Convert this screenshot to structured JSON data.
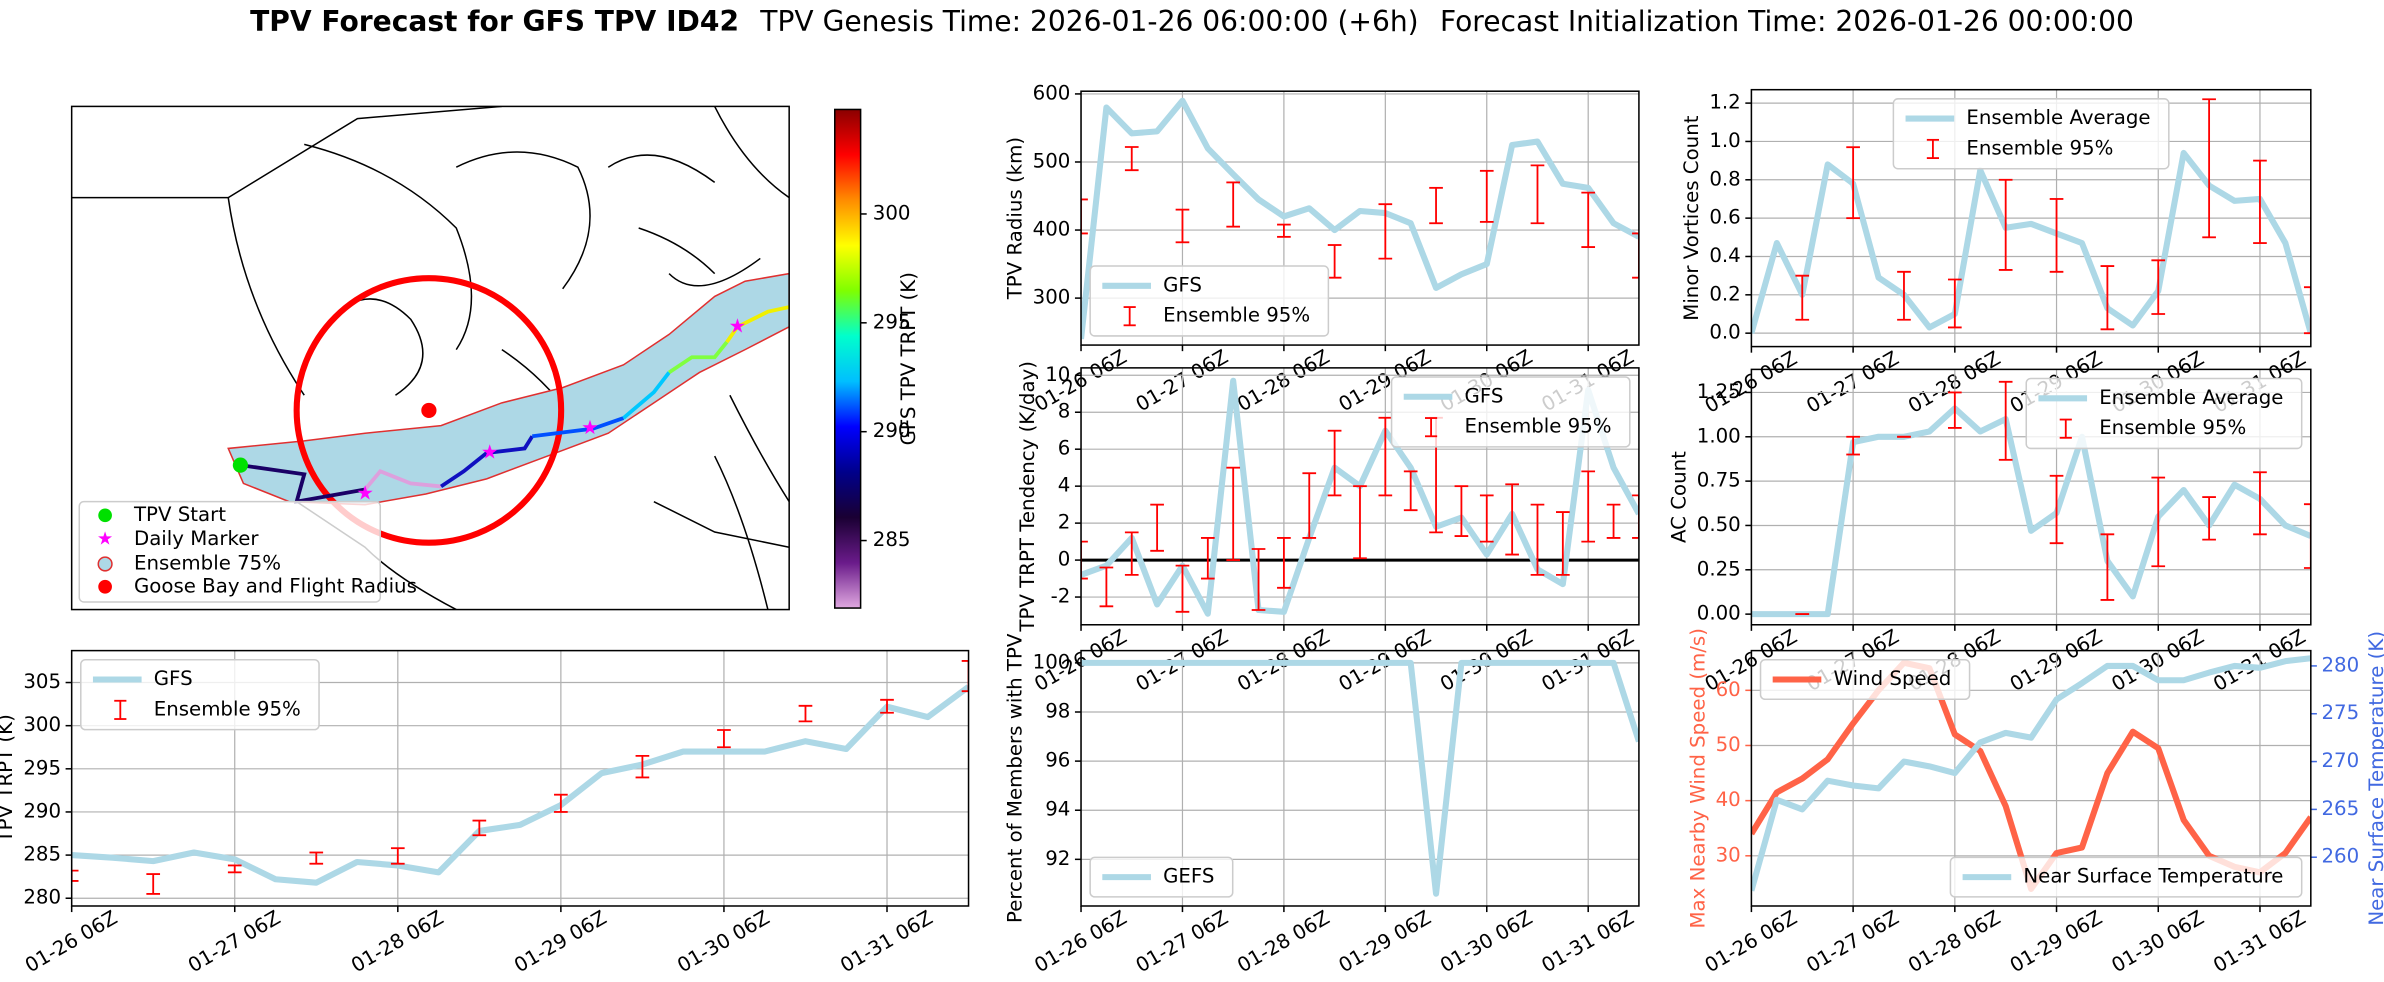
{
  "title": {
    "main": "TPV Forecast for GFS TPV ID42",
    "genesis": "TPV Genesis Time: 2026-01-26 06:00:00 (+6h)",
    "init": "Forecast Initialization Time: 2026-01-26 00:00:00"
  },
  "chart_data": [
    {
      "type": "map",
      "legend": "lower left",
      "legend_entries": [
        "TPV Start",
        "Daily Marker",
        "Ensemble 75%",
        "Goose Bay and Flight Radius"
      ],
      "colorbar": {
        "label": "GFS TPV TRPT (K)",
        "clim": [
          281.9,
          304.8
        ],
        "ticks": [
          285,
          290,
          295,
          300
        ],
        "colormap": [
          "#e0a8e0",
          "#6a1b8a",
          "#1a0033",
          "#00008b",
          "#0000ff",
          "#00bfff",
          "#00ffcc",
          "#7fff00",
          "#ffff00",
          "#ff8c00",
          "#ff0000",
          "#8b0000"
        ]
      }
    },
    {
      "type": "line",
      "ylabel": "TPV Radius (km)",
      "x": [
        "01-26 06Z",
        "01-26 12Z",
        "01-26 18Z",
        "01-27 00Z",
        "01-27 06Z",
        "01-27 12Z",
        "01-27 18Z",
        "01-28 00Z",
        "01-28 06Z",
        "01-28 12Z",
        "01-28 18Z",
        "01-29 00Z",
        "01-29 06Z",
        "01-29 12Z",
        "01-29 18Z",
        "01-30 00Z",
        "01-30 06Z",
        "01-30 12Z",
        "01-30 18Z",
        "01-31 00Z",
        "01-31 06Z",
        "01-31 12Z",
        "01-31 18Z"
      ],
      "xticks": [
        "01-26 06Z",
        "01-27 06Z",
        "01-28 06Z",
        "01-29 06Z",
        "01-30 06Z",
        "01-31 06Z"
      ],
      "ylim": [
        231,
        604
      ],
      "yticks": [
        300,
        400,
        500,
        600
      ],
      "grid": true,
      "legend": "lower left",
      "series": [
        {
          "name": "GFS",
          "type": "line",
          "color": "#add8e6",
          "values": [
            240,
            580,
            542,
            545,
            590,
            520,
            482,
            445,
            420,
            432,
            400,
            428,
            425,
            410,
            315,
            335,
            350,
            525,
            530,
            468,
            462,
            410,
            390
          ]
        },
        {
          "name": "Ensemble 95%",
          "type": "errorbar",
          "color": "#ff0000",
          "lower": [
            395,
            null,
            488,
            null,
            382,
            null,
            405,
            null,
            390,
            null,
            330,
            null,
            358,
            null,
            410,
            null,
            412,
            null,
            410,
            null,
            375,
            null,
            330
          ],
          "upper": [
            445,
            null,
            522,
            null,
            430,
            null,
            470,
            null,
            408,
            null,
            378,
            null,
            438,
            null,
            462,
            null,
            487,
            null,
            495,
            null,
            455,
            null,
            395
          ]
        }
      ]
    },
    {
      "type": "line",
      "ylabel": "Minor Vortices Count",
      "x": [
        "01-26 06Z",
        "01-26 12Z",
        "01-26 18Z",
        "01-27 00Z",
        "01-27 06Z",
        "01-27 12Z",
        "01-27 18Z",
        "01-28 00Z",
        "01-28 06Z",
        "01-28 12Z",
        "01-28 18Z",
        "01-29 00Z",
        "01-29 06Z",
        "01-29 12Z",
        "01-29 18Z",
        "01-30 00Z",
        "01-30 06Z",
        "01-30 12Z",
        "01-30 18Z",
        "01-31 00Z",
        "01-31 06Z",
        "01-31 12Z",
        "01-31 18Z"
      ],
      "xticks": [
        "01-26 06Z",
        "01-27 06Z",
        "01-28 06Z",
        "01-29 06Z",
        "01-30 06Z",
        "01-31 06Z"
      ],
      "ylim": [
        -0.07,
        1.27
      ],
      "yticks": [
        {
          "value": 0,
          "label": "0.0"
        },
        0.2,
        0.4,
        0.6,
        0.8,
        {
          "value": 1,
          "label": "1.0"
        },
        1.2
      ],
      "grid": true,
      "legend": "upper center",
      "series": [
        {
          "name": "Ensemble Average",
          "type": "line",
          "color": "#add8e6",
          "values": [
            0.0,
            0.47,
            0.2,
            0.88,
            0.78,
            0.29,
            0.2,
            0.03,
            0.1,
            0.85,
            0.55,
            0.57,
            0.52,
            0.47,
            0.13,
            0.04,
            0.22,
            0.94,
            0.77,
            0.69,
            0.7,
            0.47,
            0.0
          ]
        },
        {
          "name": "Ensemble 95%",
          "type": "errorbar",
          "color": "#ff0000",
          "lower": [
            null,
            null,
            0.07,
            null,
            0.6,
            null,
            0.07,
            null,
            0.03,
            null,
            0.33,
            null,
            0.32,
            null,
            0.02,
            null,
            0.1,
            null,
            0.5,
            null,
            0.47,
            null,
            0.0
          ],
          "upper": [
            null,
            null,
            0.3,
            null,
            0.97,
            null,
            0.32,
            null,
            0.28,
            null,
            0.8,
            null,
            0.7,
            null,
            0.35,
            null,
            0.38,
            null,
            1.22,
            null,
            0.9,
            null,
            0.24
          ]
        }
      ]
    },
    {
      "type": "line",
      "ylabel": "TPV TRPT Tendency (K/day)",
      "x": [
        "01-26 06Z",
        "01-26 12Z",
        "01-26 18Z",
        "01-27 00Z",
        "01-27 06Z",
        "01-27 12Z",
        "01-27 18Z",
        "01-28 00Z",
        "01-28 06Z",
        "01-28 12Z",
        "01-28 18Z",
        "01-29 00Z",
        "01-29 06Z",
        "01-29 12Z",
        "01-29 18Z",
        "01-30 00Z",
        "01-30 06Z",
        "01-30 12Z",
        "01-30 18Z",
        "01-31 00Z",
        "01-31 06Z",
        "01-31 12Z",
        "01-31 18Z"
      ],
      "xticks": [
        "01-26 06Z",
        "01-27 06Z",
        "01-28 06Z",
        "01-29 06Z",
        "01-30 06Z",
        "01-31 06Z"
      ],
      "ylim": [
        -3.5,
        10.4
      ],
      "yticks": [
        -2,
        0,
        2,
        4,
        6,
        8,
        10
      ],
      "grid": true,
      "legend": "upper right",
      "reference_line": 0,
      "series": [
        {
          "name": "GFS",
          "type": "line",
          "color": "#add8e6",
          "values": [
            -0.8,
            -0.3,
            1.2,
            -2.4,
            -0.3,
            -2.9,
            9.7,
            -2.7,
            -2.8,
            1.2,
            5,
            4,
            7,
            5,
            1.8,
            2.3,
            0.3,
            2.5,
            -0.5,
            -1.3,
            9.2,
            5,
            2.5
          ]
        },
        {
          "name": "Ensemble 95%",
          "type": "errorbar",
          "color": "#ff0000",
          "lower": [
            -1,
            -2.5,
            -0.8,
            0.5,
            -2.8,
            -1,
            0,
            -2.7,
            -1.5,
            1.2,
            3.5,
            0.1,
            3.5,
            2.7,
            1.5,
            1.3,
            1,
            0.3,
            -0.8,
            -0.8,
            1,
            1.2,
            1.2
          ],
          "upper": [
            1,
            -0.4,
            1.5,
            3,
            -0.3,
            1.2,
            5,
            0.6,
            1.2,
            4.7,
            7,
            4,
            7.7,
            4.8,
            7.7,
            4,
            3.5,
            4.1,
            3,
            2.6,
            4.8,
            3,
            3.5
          ]
        }
      ]
    },
    {
      "type": "line",
      "ylabel": "AC Count",
      "x": [
        "01-26 06Z",
        "01-26 12Z",
        "01-26 18Z",
        "01-27 00Z",
        "01-27 06Z",
        "01-27 12Z",
        "01-27 18Z",
        "01-28 00Z",
        "01-28 06Z",
        "01-28 12Z",
        "01-28 18Z",
        "01-29 00Z",
        "01-29 06Z",
        "01-29 12Z",
        "01-29 18Z",
        "01-30 00Z",
        "01-30 06Z",
        "01-30 12Z",
        "01-30 18Z",
        "01-31 00Z",
        "01-31 06Z",
        "01-31 12Z",
        "01-31 18Z"
      ],
      "xticks": [
        "01-26 06Z",
        "01-27 06Z",
        "01-28 06Z",
        "01-29 06Z",
        "01-30 06Z",
        "01-31 06Z"
      ],
      "ylim": [
        -0.06,
        1.38
      ],
      "yticks": [
        {
          "value": 0,
          "label": "0.00"
        },
        0.25,
        {
          "value": 0.5,
          "label": "0.50"
        },
        0.75,
        {
          "value": 1,
          "label": "1.00"
        },
        1.25
      ],
      "grid": true,
      "legend": "upper right",
      "series": [
        {
          "name": "Ensemble Average",
          "type": "line",
          "color": "#add8e6",
          "values": [
            0,
            0,
            0,
            0,
            0.97,
            1.0,
            1.0,
            1.03,
            1.16,
            1.03,
            1.1,
            0.47,
            0.57,
            1.0,
            0.3,
            0.1,
            0.55,
            0.7,
            0.5,
            0.73,
            0.65,
            0.5,
            0.44
          ]
        },
        {
          "name": "Ensemble 95%",
          "type": "errorbar",
          "color": "#ff0000",
          "lower": [
            null,
            null,
            0,
            null,
            0.9,
            null,
            1.0,
            null,
            1.05,
            null,
            0.87,
            null,
            0.4,
            null,
            0.08,
            null,
            0.27,
            null,
            0.42,
            null,
            0.45,
            null,
            0.26
          ],
          "upper": [
            null,
            null,
            0,
            null,
            1.0,
            null,
            1.0,
            null,
            1.25,
            null,
            1.31,
            null,
            0.78,
            null,
            0.45,
            null,
            0.77,
            null,
            0.66,
            null,
            0.8,
            null,
            0.62
          ]
        }
      ]
    },
    {
      "type": "line",
      "ylabel": "TPV TRPT (K)",
      "x": [
        "01-26 06Z",
        "01-26 12Z",
        "01-26 18Z",
        "01-27 00Z",
        "01-27 06Z",
        "01-27 12Z",
        "01-27 18Z",
        "01-28 00Z",
        "01-28 06Z",
        "01-28 12Z",
        "01-28 18Z",
        "01-29 00Z",
        "01-29 06Z",
        "01-29 12Z",
        "01-29 18Z",
        "01-30 00Z",
        "01-30 06Z",
        "01-30 12Z",
        "01-30 18Z",
        "01-31 00Z",
        "01-31 06Z",
        "01-31 12Z",
        "01-31 18Z"
      ],
      "xticks": [
        "01-26 06Z",
        "01-27 06Z",
        "01-28 06Z",
        "01-29 06Z",
        "01-30 06Z",
        "01-31 06Z"
      ],
      "ylim": [
        279.1,
        308.7
      ],
      "yticks": [
        280,
        285,
        290,
        295,
        300,
        305
      ],
      "grid": true,
      "legend": "upper left",
      "series": [
        {
          "name": "GFS",
          "type": "line",
          "color": "#add8e6",
          "values": [
            285,
            284.7,
            284.3,
            285.3,
            284.5,
            282.2,
            281.8,
            284.2,
            283.8,
            283,
            287.8,
            288.5,
            290.8,
            294.5,
            295.5,
            297,
            297,
            297,
            298.2,
            297.3,
            302.2,
            301,
            304.5
          ]
        },
        {
          "name": "Ensemble 95%",
          "type": "errorbar",
          "color": "#ff0000",
          "lower": [
            282,
            null,
            280.5,
            null,
            283,
            null,
            284,
            null,
            284,
            null,
            287.3,
            null,
            290,
            null,
            294,
            null,
            297.5,
            null,
            300.5,
            null,
            301.5,
            null,
            304
          ],
          "upper": [
            283.2,
            null,
            282.8,
            null,
            283.8,
            null,
            285.3,
            null,
            285.8,
            null,
            289,
            null,
            292,
            null,
            296.5,
            null,
            299.5,
            null,
            302.3,
            null,
            303,
            null,
            307.5
          ]
        }
      ]
    },
    {
      "type": "line",
      "ylabel": "Percent of Members with TPV",
      "x": [
        "01-26 06Z",
        "01-26 12Z",
        "01-26 18Z",
        "01-27 00Z",
        "01-27 06Z",
        "01-27 12Z",
        "01-27 18Z",
        "01-28 00Z",
        "01-28 06Z",
        "01-28 12Z",
        "01-28 18Z",
        "01-29 00Z",
        "01-29 06Z",
        "01-29 12Z",
        "01-29 18Z",
        "01-30 00Z",
        "01-30 06Z",
        "01-30 12Z",
        "01-30 18Z",
        "01-31 00Z",
        "01-31 06Z",
        "01-31 12Z",
        "01-31 18Z"
      ],
      "xticks": [
        "01-26 06Z",
        "01-27 06Z",
        "01-28 06Z",
        "01-29 06Z",
        "01-30 06Z",
        "01-31 06Z"
      ],
      "ylim": [
        90.1,
        100.5
      ],
      "yticks": [
        92,
        94,
        96,
        98,
        100
      ],
      "grid": true,
      "legend": "lower left",
      "series": [
        {
          "name": "GEFS",
          "type": "line",
          "color": "#add8e6",
          "values": [
            100,
            100,
            100,
            100,
            100,
            100,
            100,
            100,
            100,
            100,
            100,
            100,
            100,
            100,
            90.6,
            100,
            100,
            100,
            100,
            100,
            100,
            100,
            96.8
          ]
        }
      ]
    },
    {
      "type": "line",
      "ylabel": "Max Nearby Wind Speed (m/s)",
      "y2label": "Near Surface Temperature (K)",
      "x": [
        "01-26 06Z",
        "01-26 12Z",
        "01-26 18Z",
        "01-27 00Z",
        "01-27 06Z",
        "01-27 12Z",
        "01-27 18Z",
        "01-28 00Z",
        "01-28 06Z",
        "01-28 12Z",
        "01-28 18Z",
        "01-29 00Z",
        "01-29 06Z",
        "01-29 12Z",
        "01-29 18Z",
        "01-30 00Z",
        "01-30 06Z",
        "01-30 12Z",
        "01-30 18Z",
        "01-31 00Z",
        "01-31 06Z",
        "01-31 12Z",
        "01-31 18Z"
      ],
      "xticks": [
        "01-26 06Z",
        "01-27 06Z",
        "01-28 06Z",
        "01-29 06Z",
        "01-30 06Z",
        "01-31 06Z"
      ],
      "ylim": [
        20.9,
        67.2
      ],
      "yticks": [
        30,
        40,
        50,
        60
      ],
      "y2lim": [
        254.9,
        281.6
      ],
      "y2ticks": [
        260,
        265,
        270,
        275,
        280
      ],
      "ycolor": "#ff6347",
      "y2color": "#4169e1",
      "grid": true,
      "series": [
        {
          "name": "Wind Speed",
          "type": "line",
          "color": "#ff6347",
          "legend": "upper left",
          "values": [
            34,
            41.5,
            44,
            47.5,
            54,
            60,
            65,
            64,
            52,
            49,
            39,
            24,
            30.5,
            31.5,
            45,
            52.5,
            49.5,
            36.5,
            30,
            28,
            27,
            30.5,
            37
          ]
        },
        {
          "name": "Near Surface Temperature",
          "type": "line",
          "color": "#add8e6",
          "axis": "y2",
          "legend": "lower right",
          "values": [
            256.5,
            266,
            265,
            268,
            267.5,
            267.2,
            270,
            269.5,
            268.8,
            272,
            273,
            272.5,
            276.5,
            278.2,
            280,
            280,
            278.5,
            278.5,
            279.3,
            280,
            279.8,
            280.5,
            280.8
          ]
        }
      ]
    }
  ]
}
